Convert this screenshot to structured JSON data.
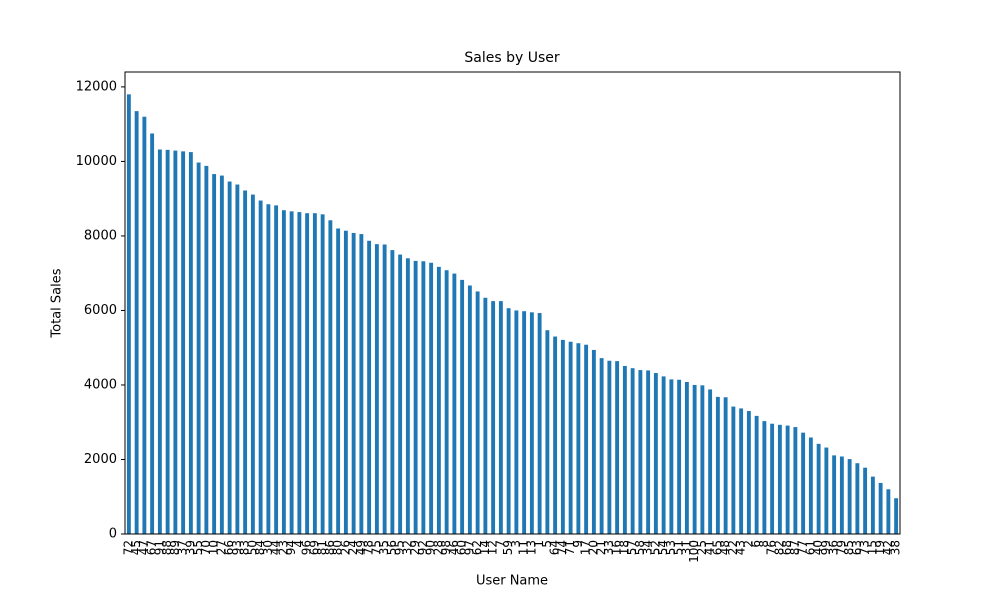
{
  "chart_data": {
    "type": "bar",
    "title": "Sales by User",
    "xlabel": "User Name",
    "ylabel": "Total Sales",
    "categories": [
      "72",
      "45",
      "47",
      "67",
      "91",
      "88",
      "89",
      "37",
      "39",
      "55",
      "70",
      "10",
      "27",
      "66",
      "93",
      "83",
      "50",
      "84",
      "30",
      "44",
      "23",
      "94",
      "4",
      "96",
      "69",
      "81",
      "86",
      "80",
      "26",
      "24",
      "49",
      "78",
      "75",
      "35",
      "56",
      "95",
      "32",
      "29",
      "92",
      "90",
      "28",
      "98",
      "46",
      "60",
      "97",
      "62",
      "14",
      "12",
      "7",
      "59",
      "3",
      "11",
      "13",
      "1",
      "5",
      "64",
      "74",
      "71",
      "9",
      "17",
      "20",
      "21",
      "33",
      "16",
      "18",
      "57",
      "58",
      "34",
      "52",
      "54",
      "53",
      "51",
      "31",
      "100",
      "25",
      "41",
      "65",
      "48",
      "22",
      "43",
      "2",
      "6",
      "8",
      "76",
      "82",
      "68",
      "87",
      "77",
      "61",
      "40",
      "99",
      "36",
      "79",
      "85",
      "63",
      "73",
      "15",
      "19",
      "42",
      "38"
    ],
    "values": [
      11800,
      11350,
      11200,
      10750,
      10320,
      10310,
      10290,
      10270,
      10250,
      9970,
      9880,
      9660,
      9620,
      9460,
      9380,
      9220,
      9110,
      8950,
      8850,
      8820,
      8690,
      8660,
      8640,
      8610,
      8610,
      8580,
      8420,
      8200,
      8140,
      8080,
      8050,
      7870,
      7780,
      7770,
      7620,
      7500,
      7400,
      7330,
      7320,
      7280,
      7170,
      7080,
      6990,
      6820,
      6670,
      6510,
      6340,
      6250,
      6250,
      6060,
      6000,
      5980,
      5950,
      5930,
      5470,
      5300,
      5210,
      5160,
      5120,
      5080,
      4940,
      4720,
      4650,
      4640,
      4510,
      4450,
      4400,
      4390,
      4320,
      4230,
      4150,
      4140,
      4080,
      4000,
      3990,
      3880,
      3680,
      3670,
      3420,
      3370,
      3300,
      3170,
      3030,
      2960,
      2930,
      2910,
      2870,
      2720,
      2590,
      2420,
      2320,
      2110,
      2080,
      2010,
      1900,
      1780,
      1540,
      1370,
      1200,
      960
    ],
    "color": "#1f77b4",
    "ylim": [
      0,
      12400
    ],
    "yticks": [
      0,
      2000,
      4000,
      6000,
      8000,
      10000,
      12000
    ],
    "grid": false
  }
}
